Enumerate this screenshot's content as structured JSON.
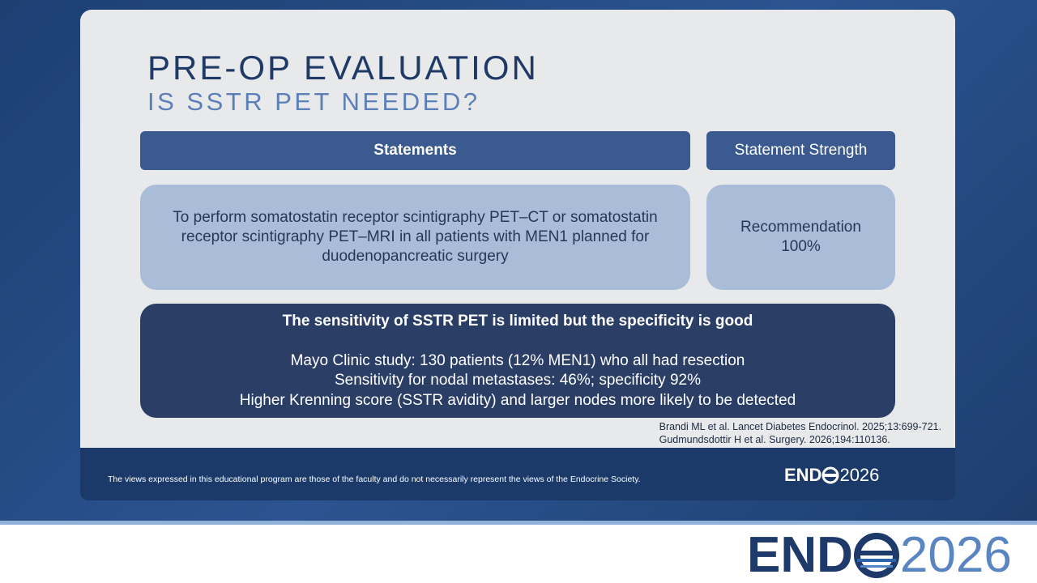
{
  "header": {
    "title": "PRE-OP EVALUATION",
    "subtitle": "IS SSTR PET NEEDED?"
  },
  "table": {
    "columns": [
      "Statements",
      "Statement Strength"
    ],
    "rows": [
      [
        "To perform somatostatin receptor scintigraphy PET–CT or somatostatin receptor scintigraphy PET–MRI in all patients with MEN1 planned for duodenopancreatic surgery",
        [
          "Recommendation",
          "100%"
        ]
      ]
    ]
  },
  "evidence": {
    "heading": "The sensitivity of SSTR PET is limited but the specificity is good",
    "lines": [
      "Mayo Clinic study: 130 patients (12% MEN1) who all had resection",
      "Sensitivity for nodal metastases: 46%; specificity 92%",
      "Higher Krenning score (SSTR avidity) and larger nodes more likely to be detected"
    ]
  },
  "references": [
    "Brandi ML et al. Lancet Diabetes Endocrinol. 2025;13:699-721.",
    "Gudmundsdottir H et al. Surgery. 2026;194:110136."
  ],
  "footer": {
    "disclaimer": "The views expressed in this educational program are those of the faculty and do not necessarily represent the views of the Endocrine Society."
  },
  "logo": {
    "brand": "END",
    "year": "2026"
  }
}
